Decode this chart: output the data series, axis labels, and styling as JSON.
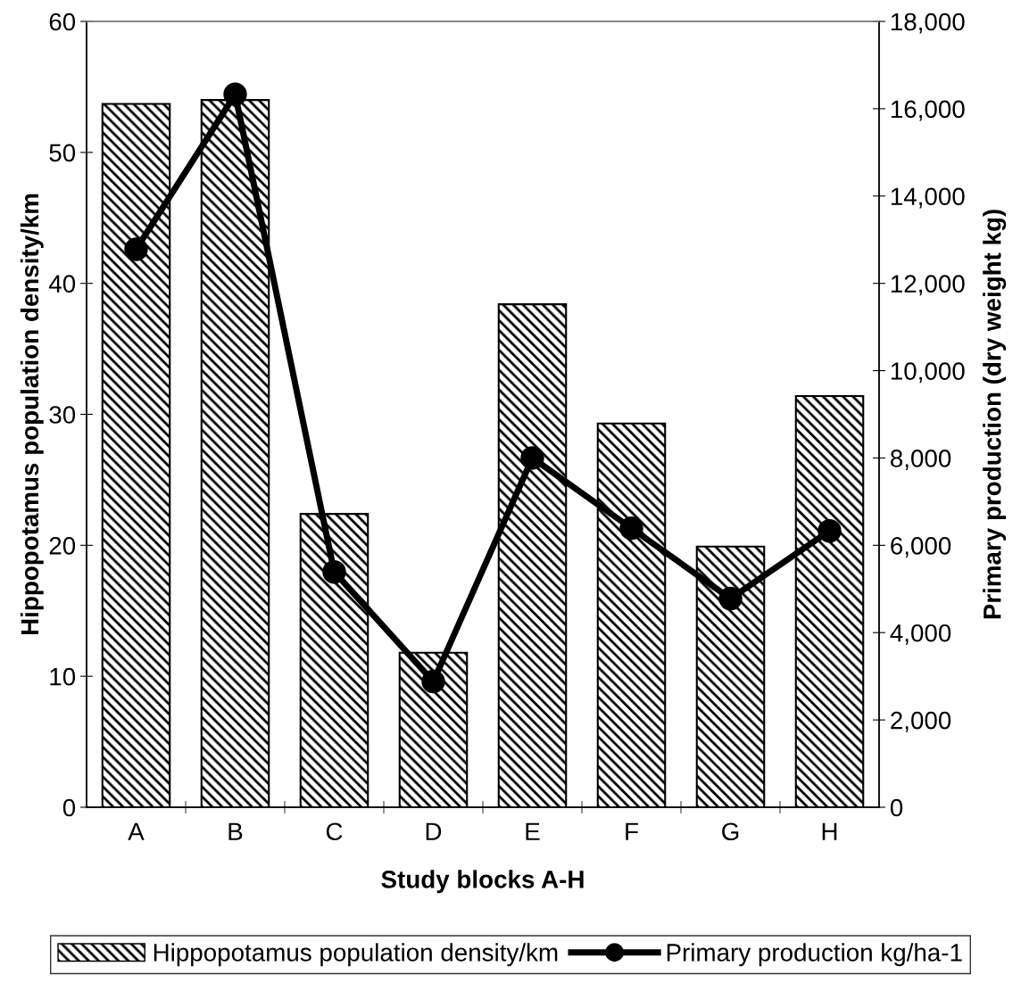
{
  "chart_data": {
    "type": "bar",
    "xlabel": "Study blocks A-H",
    "ylabel": "Hippopotamus population density/km",
    "y2label": "Primary production (dry weight kg)",
    "categories": [
      "A",
      "B",
      "C",
      "D",
      "E",
      "F",
      "G",
      "H"
    ],
    "series": [
      {
        "name": "Hippopotamus population density/km",
        "color": "#000000",
        "values": [
          53.7,
          54.0,
          22.4,
          11.8,
          38.4,
          29.3,
          19.9,
          31.4
        ]
      },
      {
        "name": "Primary production kg/ha-1",
        "type": "line",
        "axis": "y2",
        "color": "#000000",
        "marker": "circle",
        "line_style": "solid",
        "values": [
          12780,
          16330,
          5390,
          2880,
          8000,
          6390,
          4780,
          6330
        ]
      }
    ],
    "ylim": [
      0,
      60
    ],
    "yticks": [
      0,
      10,
      20,
      30,
      40,
      50,
      60
    ],
    "y2lim": [
      0,
      18000
    ],
    "y2ticks": [
      0,
      {
        "value": 2000,
        "label": "2,000"
      },
      {
        "value": 4000,
        "label": "4,000"
      },
      {
        "value": 6000,
        "label": "6,000"
      },
      {
        "value": 8000,
        "label": "8,000"
      },
      {
        "value": 10000,
        "label": "10,000"
      },
      {
        "value": 12000,
        "label": "12,000"
      },
      {
        "value": 14000,
        "label": "14,000"
      },
      {
        "value": 16000,
        "label": "16,000"
      },
      {
        "value": 18000,
        "label": "18,000"
      }
    ],
    "grid": false,
    "legend": "bottom"
  }
}
